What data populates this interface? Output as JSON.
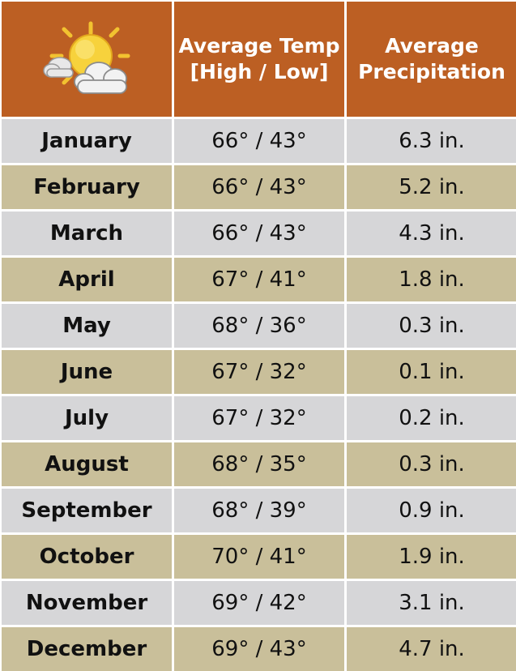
{
  "header": {
    "icon": "partly-cloudy-icon",
    "temp_line1": "Average Temp",
    "temp_line2": "[High / Low]",
    "precip_line1": "Average",
    "precip_line2": "Precipitation"
  },
  "rows": [
    {
      "month": "January",
      "temp": "66° / 43°",
      "precip": "6.3 in."
    },
    {
      "month": "February",
      "temp": "66° / 43°",
      "precip": "5.2 in."
    },
    {
      "month": "March",
      "temp": "66° / 43°",
      "precip": "4.3 in."
    },
    {
      "month": "April",
      "temp": "67° / 41°",
      "precip": "1.8 in."
    },
    {
      "month": "May",
      "temp": "68° / 36°",
      "precip": "0.3 in."
    },
    {
      "month": "June",
      "temp": "67° / 32°",
      "precip": "0.1 in."
    },
    {
      "month": "July",
      "temp": "67° / 32°",
      "precip": "0.2 in."
    },
    {
      "month": "August",
      "temp": "68° / 35°",
      "precip": "0.3 in."
    },
    {
      "month": "September",
      "temp": "68° / 39°",
      "precip": "0.9 in."
    },
    {
      "month": "October",
      "temp": "70° / 41°",
      "precip": "1.9 in."
    },
    {
      "month": "November",
      "temp": "69° / 42°",
      "precip": "3.1 in."
    },
    {
      "month": "December",
      "temp": "69° / 43°",
      "precip": "4.7 in."
    }
  ],
  "colors": {
    "header_bg": "#bc5f23",
    "row_odd_bg": "#d6d6d8",
    "row_even_bg": "#c9bf9a",
    "header_text": "#ffffff",
    "body_text": "#111111"
  }
}
